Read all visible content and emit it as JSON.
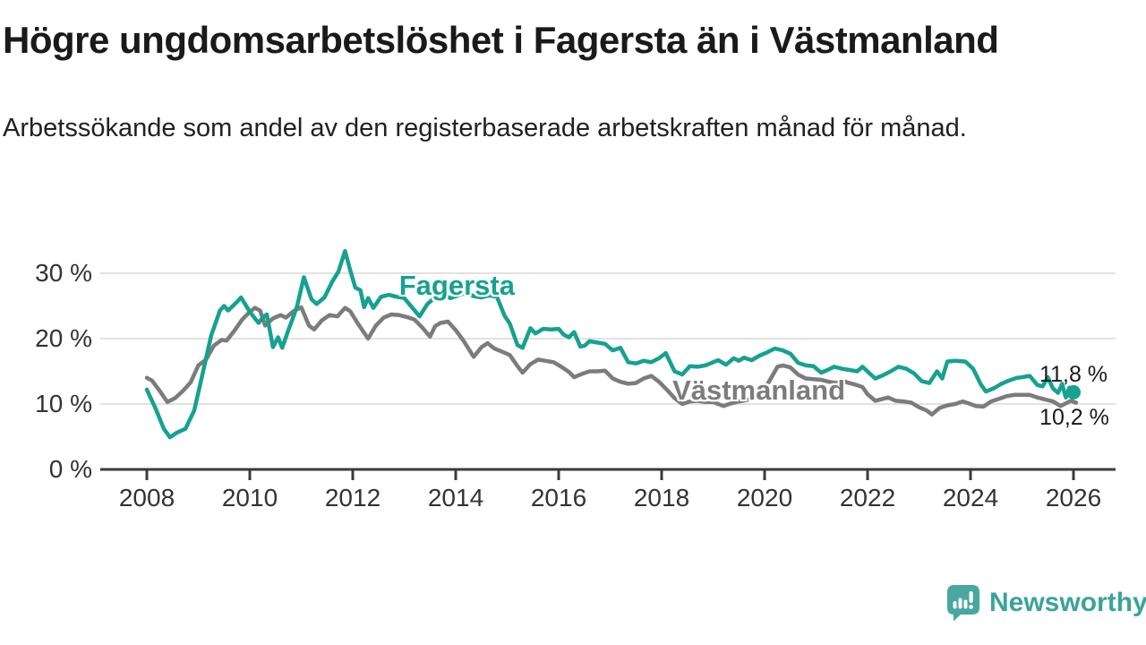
{
  "header": {
    "title": "Högre ungdomsarbetslöshet i Fagersta än i Västmanland",
    "subtitle": "Arbetssökande som andel av den registerbaserade arbetskraften månad för månad."
  },
  "footer": {
    "brand": "Newsworthy"
  },
  "colors": {
    "fagersta": "#16a191",
    "vastmanland": "#7c7c7c",
    "grid": "#d8d8d8",
    "axis": "#3b3b3b",
    "text": "#1a1a1a",
    "logo": "#48a79e"
  },
  "chart_data": {
    "type": "line",
    "title": "Högre ungdomsarbetslöshet i Fagersta än i Västmanland",
    "xlabel": "",
    "ylabel": "",
    "unit": "%",
    "grid": "horizontal",
    "x_axis": {
      "min": 2008,
      "max": 2026.1,
      "ticks": [
        {
          "value": 2008,
          "label": "2008"
        },
        {
          "value": 2010,
          "label": "2010"
        },
        {
          "value": 2012,
          "label": "2012"
        },
        {
          "value": 2014,
          "label": "2014"
        },
        {
          "value": 2016,
          "label": "2016"
        },
        {
          "value": 2018,
          "label": "2018"
        },
        {
          "value": 2020,
          "label": "2020"
        },
        {
          "value": 2022,
          "label": "2022"
        },
        {
          "value": 2024,
          "label": "2024"
        },
        {
          "value": 2026,
          "label": "2026"
        }
      ]
    },
    "y_axis": {
      "min": 0,
      "max": 33.5,
      "ticks": [
        {
          "value": 0,
          "label": "0 %"
        },
        {
          "value": 10,
          "label": "10 %"
        },
        {
          "value": 20,
          "label": "20 %"
        },
        {
          "value": 30,
          "label": "30 %"
        }
      ]
    },
    "series": [
      {
        "name": "Västmanland",
        "color": "#7c7c7c",
        "end_dot": false,
        "points": [
          [
            2008,
            14
          ],
          [
            2008.1,
            13.6
          ],
          [
            2008.25,
            12
          ],
          [
            2008.4,
            10.3
          ],
          [
            2008.55,
            10.9
          ],
          [
            2008.7,
            12
          ],
          [
            2008.85,
            13.3
          ],
          [
            2009,
            15.9
          ],
          [
            2009.15,
            16.8
          ],
          [
            2009.3,
            18.9
          ],
          [
            2009.45,
            19.8
          ],
          [
            2009.55,
            19.7
          ],
          [
            2009.7,
            21.2
          ],
          [
            2009.85,
            22.9
          ],
          [
            2010,
            24.1
          ],
          [
            2010.1,
            24.7
          ],
          [
            2010.2,
            24.3
          ],
          [
            2010.3,
            22
          ],
          [
            2010.45,
            23.1
          ],
          [
            2010.6,
            23.6
          ],
          [
            2010.7,
            23.2
          ],
          [
            2010.85,
            24.2
          ],
          [
            2011,
            24.8
          ],
          [
            2011.15,
            22
          ],
          [
            2011.25,
            21.4
          ],
          [
            2011.4,
            22.8
          ],
          [
            2011.55,
            23.6
          ],
          [
            2011.7,
            23.4
          ],
          [
            2011.85,
            24.7
          ],
          [
            2011.95,
            24.2
          ],
          [
            2012.1,
            22.3
          ],
          [
            2012.3,
            20
          ],
          [
            2012.45,
            22
          ],
          [
            2012.6,
            23.2
          ],
          [
            2012.75,
            23.7
          ],
          [
            2012.9,
            23.6
          ],
          [
            2013.05,
            23.3
          ],
          [
            2013.2,
            22.9
          ],
          [
            2013.35,
            21.7
          ],
          [
            2013.5,
            20.3
          ],
          [
            2013.6,
            21.9
          ],
          [
            2013.7,
            22.4
          ],
          [
            2013.85,
            22.6
          ],
          [
            2014,
            21.3
          ],
          [
            2014.15,
            19.7
          ],
          [
            2014.35,
            17.2
          ],
          [
            2014.5,
            18.7
          ],
          [
            2014.62,
            19.3
          ],
          [
            2014.75,
            18.5
          ],
          [
            2014.9,
            18
          ],
          [
            2015.05,
            17.5
          ],
          [
            2015.2,
            15.8
          ],
          [
            2015.3,
            14.8
          ],
          [
            2015.45,
            16.1
          ],
          [
            2015.6,
            16.8
          ],
          [
            2015.75,
            16.6
          ],
          [
            2015.9,
            16.4
          ],
          [
            2016.05,
            15.7
          ],
          [
            2016.2,
            14.9
          ],
          [
            2016.3,
            14.1
          ],
          [
            2016.45,
            14.6
          ],
          [
            2016.6,
            15
          ],
          [
            2016.75,
            15
          ],
          [
            2016.9,
            15.1
          ],
          [
            2017.05,
            13.9
          ],
          [
            2017.2,
            13.4
          ],
          [
            2017.35,
            13.1
          ],
          [
            2017.5,
            13.2
          ],
          [
            2017.65,
            13.9
          ],
          [
            2017.8,
            14.3
          ],
          [
            2017.95,
            13.4
          ],
          [
            2018.1,
            12.2
          ],
          [
            2018.25,
            10.9
          ],
          [
            2018.4,
            10
          ],
          [
            2018.55,
            10.4
          ],
          [
            2018.7,
            10.5
          ],
          [
            2018.85,
            10.3
          ],
          [
            2019,
            10.3
          ],
          [
            2019.2,
            9.7
          ],
          [
            2019.35,
            10.1
          ],
          [
            2019.5,
            10.4
          ],
          [
            2019.65,
            10.6
          ],
          [
            2019.8,
            10.9
          ],
          [
            2019.95,
            11.6
          ],
          [
            2020.1,
            13.6
          ],
          [
            2020.25,
            15.7
          ],
          [
            2020.35,
            15.9
          ],
          [
            2020.5,
            15.6
          ],
          [
            2020.65,
            14.5
          ],
          [
            2020.8,
            13.9
          ],
          [
            2020.95,
            13.8
          ],
          [
            2021.1,
            13.7
          ],
          [
            2021.25,
            13.4
          ],
          [
            2021.4,
            13.2
          ],
          [
            2021.5,
            13.7
          ],
          [
            2021.6,
            13.3
          ],
          [
            2021.75,
            13
          ],
          [
            2021.9,
            12.6
          ],
          [
            2022,
            11.5
          ],
          [
            2022.15,
            10.5
          ],
          [
            2022.3,
            10.8
          ],
          [
            2022.4,
            11
          ],
          [
            2022.55,
            10.5
          ],
          [
            2022.7,
            10.4
          ],
          [
            2022.85,
            10.2
          ],
          [
            2023,
            9.5
          ],
          [
            2023.15,
            9
          ],
          [
            2023.25,
            8.4
          ],
          [
            2023.4,
            9.4
          ],
          [
            2023.55,
            9.8
          ],
          [
            2023.7,
            10
          ],
          [
            2023.85,
            10.4
          ],
          [
            2024,
            10
          ],
          [
            2024.1,
            9.7
          ],
          [
            2024.25,
            9.6
          ],
          [
            2024.4,
            10.4
          ],
          [
            2024.55,
            10.8
          ],
          [
            2024.7,
            11.2
          ],
          [
            2024.85,
            11.4
          ],
          [
            2025,
            11.4
          ],
          [
            2025.15,
            11.4
          ],
          [
            2025.3,
            11
          ],
          [
            2025.45,
            10.7
          ],
          [
            2025.6,
            10.4
          ],
          [
            2025.75,
            9.7
          ],
          [
            2025.85,
            10.1
          ],
          [
            2025.95,
            10.5
          ],
          [
            2026.05,
            10.2
          ]
        ]
      },
      {
        "name": "Fagersta",
        "color": "#16a191",
        "end_dot": true,
        "points": [
          [
            2008,
            12.2
          ],
          [
            2008.17,
            9.3
          ],
          [
            2008.33,
            6.2
          ],
          [
            2008.45,
            4.9
          ],
          [
            2008.58,
            5.6
          ],
          [
            2008.75,
            6.2
          ],
          [
            2008.92,
            9
          ],
          [
            2009.08,
            14.5
          ],
          [
            2009.25,
            20.5
          ],
          [
            2009.42,
            24.3
          ],
          [
            2009.5,
            25
          ],
          [
            2009.58,
            24.3
          ],
          [
            2009.75,
            25.6
          ],
          [
            2009.83,
            26.3
          ],
          [
            2010,
            24.1
          ],
          [
            2010.17,
            22.4
          ],
          [
            2010.25,
            23.2
          ],
          [
            2010.33,
            23.7
          ],
          [
            2010.45,
            18.7
          ],
          [
            2010.55,
            20.2
          ],
          [
            2010.63,
            18.6
          ],
          [
            2010.75,
            21.3
          ],
          [
            2010.83,
            23
          ],
          [
            2010.92,
            25
          ],
          [
            2011.05,
            29.4
          ],
          [
            2011.2,
            26
          ],
          [
            2011.3,
            25.3
          ],
          [
            2011.45,
            26.3
          ],
          [
            2011.6,
            28.7
          ],
          [
            2011.72,
            30.2
          ],
          [
            2011.85,
            33.4
          ],
          [
            2011.95,
            30.5
          ],
          [
            2012.05,
            27.8
          ],
          [
            2012.15,
            27.4
          ],
          [
            2012.22,
            24.8
          ],
          [
            2012.3,
            26.2
          ],
          [
            2012.4,
            24.7
          ],
          [
            2012.55,
            26.4
          ],
          [
            2012.7,
            26.7
          ],
          [
            2012.85,
            26.4
          ],
          [
            2013,
            26.2
          ],
          [
            2013.15,
            24.8
          ],
          [
            2013.3,
            23.4
          ],
          [
            2013.45,
            25.3
          ],
          [
            2013.6,
            26.3
          ],
          [
            2013.75,
            26.6
          ],
          [
            2013.9,
            26.2
          ],
          [
            2014.05,
            26.6
          ],
          [
            2014.2,
            27
          ],
          [
            2014.35,
            26.5
          ],
          [
            2014.5,
            26.3
          ],
          [
            2014.65,
            26.6
          ],
          [
            2014.8,
            26.4
          ],
          [
            2014.95,
            23.5
          ],
          [
            2015.05,
            22.3
          ],
          [
            2015.2,
            19
          ],
          [
            2015.3,
            18.6
          ],
          [
            2015.45,
            21.6
          ],
          [
            2015.55,
            20.8
          ],
          [
            2015.7,
            21.5
          ],
          [
            2015.85,
            21.4
          ],
          [
            2016,
            21.5
          ],
          [
            2016.1,
            20.6
          ],
          [
            2016.2,
            20.2
          ],
          [
            2016.3,
            21
          ],
          [
            2016.42,
            18.8
          ],
          [
            2016.5,
            18.9
          ],
          [
            2016.6,
            19.6
          ],
          [
            2016.75,
            19.4
          ],
          [
            2016.9,
            19.2
          ],
          [
            2017.05,
            18.2
          ],
          [
            2017.2,
            18.6
          ],
          [
            2017.35,
            16.4
          ],
          [
            2017.5,
            16.2
          ],
          [
            2017.65,
            16.6
          ],
          [
            2017.8,
            16.4
          ],
          [
            2017.95,
            17
          ],
          [
            2018.08,
            17.8
          ],
          [
            2018.25,
            15
          ],
          [
            2018.4,
            14.5
          ],
          [
            2018.55,
            15.8
          ],
          [
            2018.7,
            15.7
          ],
          [
            2018.85,
            15.9
          ],
          [
            2019,
            16.4
          ],
          [
            2019.1,
            16.7
          ],
          [
            2019.25,
            16
          ],
          [
            2019.4,
            17
          ],
          [
            2019.5,
            16.6
          ],
          [
            2019.6,
            17.1
          ],
          [
            2019.75,
            16.7
          ],
          [
            2019.9,
            17.4
          ],
          [
            2020.05,
            17.9
          ],
          [
            2020.2,
            18.5
          ],
          [
            2020.35,
            18.2
          ],
          [
            2020.5,
            17.7
          ],
          [
            2020.65,
            16.3
          ],
          [
            2020.8,
            15.9
          ],
          [
            2020.95,
            15.8
          ],
          [
            2021.1,
            14.8
          ],
          [
            2021.25,
            15.3
          ],
          [
            2021.35,
            15.7
          ],
          [
            2021.5,
            15.4
          ],
          [
            2021.65,
            15.2
          ],
          [
            2021.8,
            15
          ],
          [
            2021.9,
            15.7
          ],
          [
            2022.05,
            14.6
          ],
          [
            2022.15,
            13.9
          ],
          [
            2022.3,
            14.4
          ],
          [
            2022.45,
            15
          ],
          [
            2022.6,
            15.7
          ],
          [
            2022.75,
            15.4
          ],
          [
            2022.9,
            14.7
          ],
          [
            2023.05,
            13.5
          ],
          [
            2023.2,
            13.2
          ],
          [
            2023.35,
            15
          ],
          [
            2023.45,
            13.9
          ],
          [
            2023.55,
            16.5
          ],
          [
            2023.7,
            16.6
          ],
          [
            2023.9,
            16.5
          ],
          [
            2024.05,
            15.4
          ],
          [
            2024.2,
            13
          ],
          [
            2024.3,
            11.9
          ],
          [
            2024.45,
            12.4
          ],
          [
            2024.6,
            13.1
          ],
          [
            2024.75,
            13.6
          ],
          [
            2024.9,
            14
          ],
          [
            2025,
            14.1
          ],
          [
            2025.15,
            14.3
          ],
          [
            2025.3,
            12.9
          ],
          [
            2025.4,
            12.7
          ],
          [
            2025.5,
            14.1
          ],
          [
            2025.6,
            12.4
          ],
          [
            2025.7,
            11.7
          ],
          [
            2025.78,
            13.1
          ],
          [
            2025.85,
            11
          ],
          [
            2025.92,
            12.5
          ],
          [
            2026,
            11.8
          ]
        ]
      }
    ],
    "annotations": [
      {
        "id": "fagersta-label",
        "kind": "series",
        "text": "Fagersta",
        "color": "#16a191",
        "x": 2012.9,
        "y": 30.6
      },
      {
        "id": "vastmanland-label",
        "kind": "series",
        "text": "Västmanland",
        "color": "#7c7c7c",
        "x": 2018.21,
        "y": 14.5
      },
      {
        "id": "fagersta-end-value",
        "kind": "value",
        "text": "11,8 %",
        "color": "#1a1a1a",
        "x": 2025.34,
        "y": 16.4
      },
      {
        "id": "vastmanland-end-value",
        "kind": "value",
        "text": "10,2 %",
        "color": "#1a1a1a",
        "x": 2025.34,
        "y": 9.9
      }
    ],
    "last_values": {
      "Fagersta": "11,8 %",
      "Västmanland": "10,2 %"
    }
  }
}
